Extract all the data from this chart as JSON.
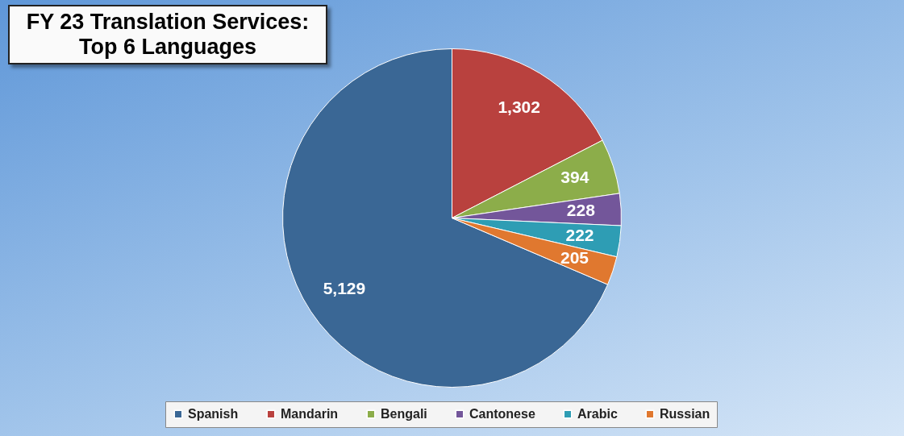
{
  "chart_data": {
    "type": "pie",
    "title": "FY 23 Translation Services: Top 6 Languages",
    "categories": [
      "Spanish",
      "Mandarin",
      "Bengali",
      "Cantonese",
      "Arabic",
      "Russian"
    ],
    "values": [
      5129,
      1302,
      394,
      228,
      222,
      205
    ],
    "colors": [
      "#3a6795",
      "#b9413e",
      "#8cad4a",
      "#73569a",
      "#2e9db4",
      "#e0782f"
    ],
    "value_labels": [
      "5,129",
      "1,302",
      "394",
      "228",
      "222",
      "205"
    ],
    "legend": "bottom"
  }
}
